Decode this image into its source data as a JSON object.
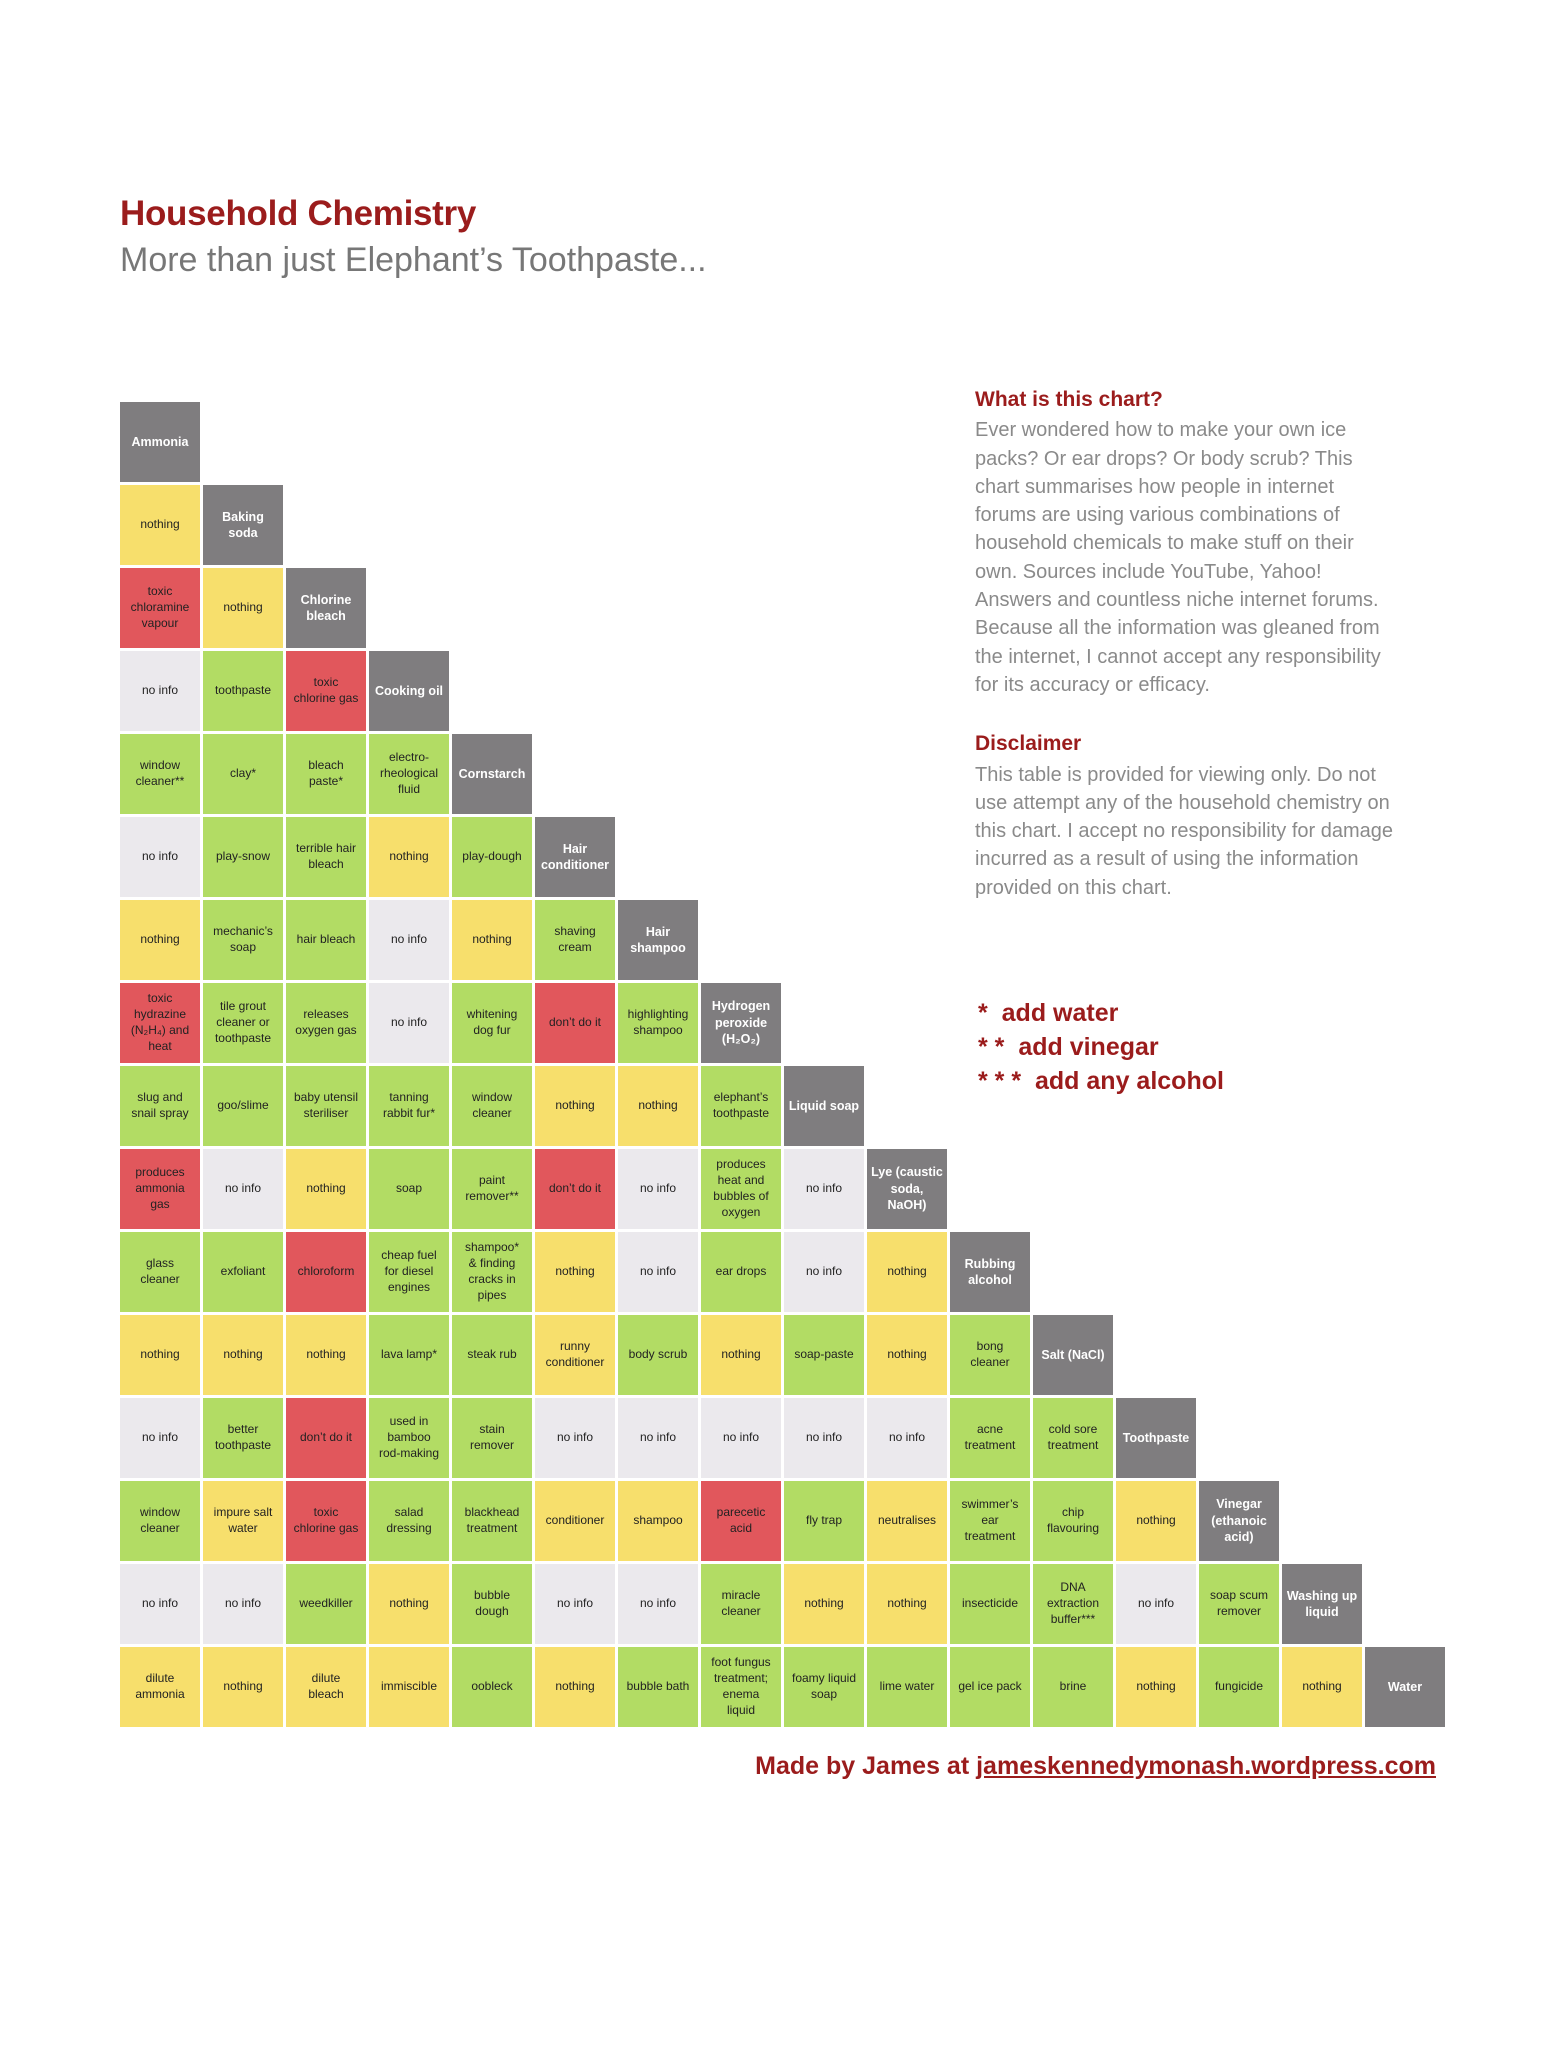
{
  "title": "Household Chemistry",
  "subtitle": "More than just Elephant’s Toothpaste...",
  "colors": {
    "header": "#7f7d7f",
    "green": "#b2dc64",
    "yellow": "#f7df6c",
    "red": "#e1575c",
    "grey": "#ebe9ed",
    "accent": "#9b1c1c"
  },
  "info": {
    "heading": "What is this chart?",
    "text": "Ever wondered how to make your own ice packs? Or ear drops? Or body scrub? This chart summarises how people in internet forums are using various combinations of household chemicals to make stuff on their own. Sources include YouTube, Yahoo! Answers and countless niche internet forums. Because all the information was gleaned from the internet, I cannot accept any responsibility for its accuracy or efficacy.",
    "disclaimer_heading": "Disclaimer",
    "disclaimer_text": "This table is provided for viewing only. Do not use attempt any of the household chemistry on this chart. I accept no responsibility for damage incurred as a result of using the information provided on this chart."
  },
  "legend": [
    {
      "mark": "*",
      "text": "add water"
    },
    {
      "mark": "* *",
      "text": "add vinegar"
    },
    {
      "mark": "* * *",
      "text": "add any alcohol"
    }
  ],
  "footer": {
    "prefix": "Made by James at ",
    "link": "jameskennedymonash.wordpress.com"
  },
  "grid_rows": [
    [
      {
        "t": "Ammonia",
        "c": "header"
      }
    ],
    [
      {
        "t": "nothing",
        "c": "yellow"
      },
      {
        "t": "Baking\nsoda",
        "c": "header"
      }
    ],
    [
      {
        "t": "toxic\nchloramine\nvapour",
        "c": "red"
      },
      {
        "t": "nothing",
        "c": "yellow"
      },
      {
        "t": "Chlorine\nbleach",
        "c": "header"
      }
    ],
    [
      {
        "t": "no info",
        "c": "grey"
      },
      {
        "t": "toothpaste",
        "c": "green"
      },
      {
        "t": "toxic\nchlorine gas",
        "c": "red"
      },
      {
        "t": "Cooking oil",
        "c": "header"
      }
    ],
    [
      {
        "t": "window\ncleaner**",
        "c": "green"
      },
      {
        "t": "clay*",
        "c": "green"
      },
      {
        "t": "bleach\npaste*",
        "c": "green"
      },
      {
        "t": "electro-\nrheological\nfluid",
        "c": "green"
      },
      {
        "t": "Cornstarch",
        "c": "header"
      }
    ],
    [
      {
        "t": "no info",
        "c": "grey"
      },
      {
        "t": "play-snow",
        "c": "green"
      },
      {
        "t": "terrible hair\nbleach",
        "c": "green"
      },
      {
        "t": "nothing",
        "c": "yellow"
      },
      {
        "t": "play-dough",
        "c": "green"
      },
      {
        "t": "Hair\nconditioner",
        "c": "header"
      }
    ],
    [
      {
        "t": "nothing",
        "c": "yellow"
      },
      {
        "t": "mechanic’s\nsoap",
        "c": "green"
      },
      {
        "t": "hair bleach",
        "c": "green"
      },
      {
        "t": "no info",
        "c": "grey"
      },
      {
        "t": "nothing",
        "c": "yellow"
      },
      {
        "t": "shaving\ncream",
        "c": "green"
      },
      {
        "t": "Hair\nshampoo",
        "c": "header"
      }
    ],
    [
      {
        "t": "toxic\nhydrazine\n(N₂H₄) and\nheat",
        "c": "red"
      },
      {
        "t": "tile grout\ncleaner or\ntoothpaste",
        "c": "green"
      },
      {
        "t": "releases\noxygen gas",
        "c": "green"
      },
      {
        "t": "no info",
        "c": "grey"
      },
      {
        "t": "whitening\ndog fur",
        "c": "green"
      },
      {
        "t": "don’t do it",
        "c": "red"
      },
      {
        "t": "highlighting\nshampoo",
        "c": "green"
      },
      {
        "t": "Hydrogen\nperoxide\n(H₂O₂)",
        "c": "header"
      }
    ],
    [
      {
        "t": "slug and\nsnail spray",
        "c": "green"
      },
      {
        "t": "goo/slime",
        "c": "green"
      },
      {
        "t": "baby utensil\nsteriliser",
        "c": "green"
      },
      {
        "t": "tanning\nrabbit fur*",
        "c": "green"
      },
      {
        "t": "window\ncleaner",
        "c": "green"
      },
      {
        "t": "nothing",
        "c": "yellow"
      },
      {
        "t": "nothing",
        "c": "yellow"
      },
      {
        "t": "elephant’s\ntoothpaste",
        "c": "green"
      },
      {
        "t": "Liquid soap",
        "c": "header"
      }
    ],
    [
      {
        "t": "produces\nammonia\ngas",
        "c": "red"
      },
      {
        "t": "no info",
        "c": "grey"
      },
      {
        "t": "nothing",
        "c": "yellow"
      },
      {
        "t": "soap",
        "c": "green"
      },
      {
        "t": "paint\nremover**",
        "c": "green"
      },
      {
        "t": "don’t do it",
        "c": "red"
      },
      {
        "t": "no info",
        "c": "grey"
      },
      {
        "t": "produces\nheat and\nbubbles of\noxygen",
        "c": "green"
      },
      {
        "t": "no info",
        "c": "grey"
      },
      {
        "t": "Lye (caustic\nsoda,\nNaOH)",
        "c": "header"
      }
    ],
    [
      {
        "t": "glass\ncleaner",
        "c": "green"
      },
      {
        "t": "exfoliant",
        "c": "green"
      },
      {
        "t": "chloroform",
        "c": "red"
      },
      {
        "t": "cheap fuel\nfor diesel\nengines",
        "c": "green"
      },
      {
        "t": "shampoo*\n& finding\ncracks in\npipes",
        "c": "green"
      },
      {
        "t": "nothing",
        "c": "yellow"
      },
      {
        "t": "no info",
        "c": "grey"
      },
      {
        "t": "ear drops",
        "c": "green"
      },
      {
        "t": "no info",
        "c": "grey"
      },
      {
        "t": "nothing",
        "c": "yellow"
      },
      {
        "t": "Rubbing\nalcohol",
        "c": "header"
      }
    ],
    [
      {
        "t": "nothing",
        "c": "yellow"
      },
      {
        "t": "nothing",
        "c": "yellow"
      },
      {
        "t": "nothing",
        "c": "yellow"
      },
      {
        "t": "lava lamp*",
        "c": "green"
      },
      {
        "t": "steak rub",
        "c": "green"
      },
      {
        "t": "runny\nconditioner",
        "c": "yellow"
      },
      {
        "t": "body scrub",
        "c": "green"
      },
      {
        "t": "nothing",
        "c": "yellow"
      },
      {
        "t": "soap-paste",
        "c": "green"
      },
      {
        "t": "nothing",
        "c": "yellow"
      },
      {
        "t": "bong\ncleaner",
        "c": "green"
      },
      {
        "t": "Salt (NaCl)",
        "c": "header"
      }
    ],
    [
      {
        "t": "no info",
        "c": "grey"
      },
      {
        "t": "better\ntoothpaste",
        "c": "green"
      },
      {
        "t": "don’t do it",
        "c": "red"
      },
      {
        "t": "used in\nbamboo\nrod-making",
        "c": "green"
      },
      {
        "t": "stain\nremover",
        "c": "green"
      },
      {
        "t": "no info",
        "c": "grey"
      },
      {
        "t": "no info",
        "c": "grey"
      },
      {
        "t": "no info",
        "c": "grey"
      },
      {
        "t": "no info",
        "c": "grey"
      },
      {
        "t": "no info",
        "c": "grey"
      },
      {
        "t": "acne\ntreatment",
        "c": "green"
      },
      {
        "t": "cold sore\ntreatment",
        "c": "green"
      },
      {
        "t": "Toothpaste",
        "c": "header"
      }
    ],
    [
      {
        "t": "window\ncleaner",
        "c": "green"
      },
      {
        "t": "impure salt\nwater",
        "c": "yellow"
      },
      {
        "t": "toxic\nchlorine gas",
        "c": "red"
      },
      {
        "t": "salad\ndressing",
        "c": "green"
      },
      {
        "t": "blackhead\ntreatment",
        "c": "green"
      },
      {
        "t": "conditioner",
        "c": "yellow"
      },
      {
        "t": "shampoo",
        "c": "yellow"
      },
      {
        "t": "parecetic\nacid",
        "c": "red"
      },
      {
        "t": "fly trap",
        "c": "green"
      },
      {
        "t": "neutralises",
        "c": "yellow"
      },
      {
        "t": "swimmer’s\near\ntreatment",
        "c": "green"
      },
      {
        "t": "chip\nflavouring",
        "c": "green"
      },
      {
        "t": "nothing",
        "c": "yellow"
      },
      {
        "t": "Vinegar\n(ethanoic\nacid)",
        "c": "header"
      }
    ],
    [
      {
        "t": "no info",
        "c": "grey"
      },
      {
        "t": "no info",
        "c": "grey"
      },
      {
        "t": "weedkiller",
        "c": "green"
      },
      {
        "t": "nothing",
        "c": "yellow"
      },
      {
        "t": "bubble\ndough",
        "c": "green"
      },
      {
        "t": "no info",
        "c": "grey"
      },
      {
        "t": "no info",
        "c": "grey"
      },
      {
        "t": "miracle\ncleaner",
        "c": "green"
      },
      {
        "t": "nothing",
        "c": "yellow"
      },
      {
        "t": "nothing",
        "c": "yellow"
      },
      {
        "t": "insecticide",
        "c": "green"
      },
      {
        "t": "DNA\nextraction\nbuffer***",
        "c": "green"
      },
      {
        "t": "no info",
        "c": "grey"
      },
      {
        "t": "soap scum\nremover",
        "c": "green"
      },
      {
        "t": "Washing up\nliquid",
        "c": "header"
      }
    ],
    [
      {
        "t": "dilute\nammonia",
        "c": "yellow"
      },
      {
        "t": "nothing",
        "c": "yellow"
      },
      {
        "t": "dilute\nbleach",
        "c": "yellow"
      },
      {
        "t": "immiscible",
        "c": "yellow"
      },
      {
        "t": "oobleck",
        "c": "green"
      },
      {
        "t": "nothing",
        "c": "yellow"
      },
      {
        "t": "bubble bath",
        "c": "green"
      },
      {
        "t": "foot fungus\ntreatment;\nenema\nliquid",
        "c": "green"
      },
      {
        "t": "foamy liquid\nsoap",
        "c": "green"
      },
      {
        "t": "lime water",
        "c": "green"
      },
      {
        "t": "gel ice pack",
        "c": "green"
      },
      {
        "t": "brine",
        "c": "green"
      },
      {
        "t": "nothing",
        "c": "yellow"
      },
      {
        "t": "fungicide",
        "c": "green"
      },
      {
        "t": "nothing",
        "c": "yellow"
      },
      {
        "t": "Water",
        "c": "header"
      }
    ]
  ]
}
